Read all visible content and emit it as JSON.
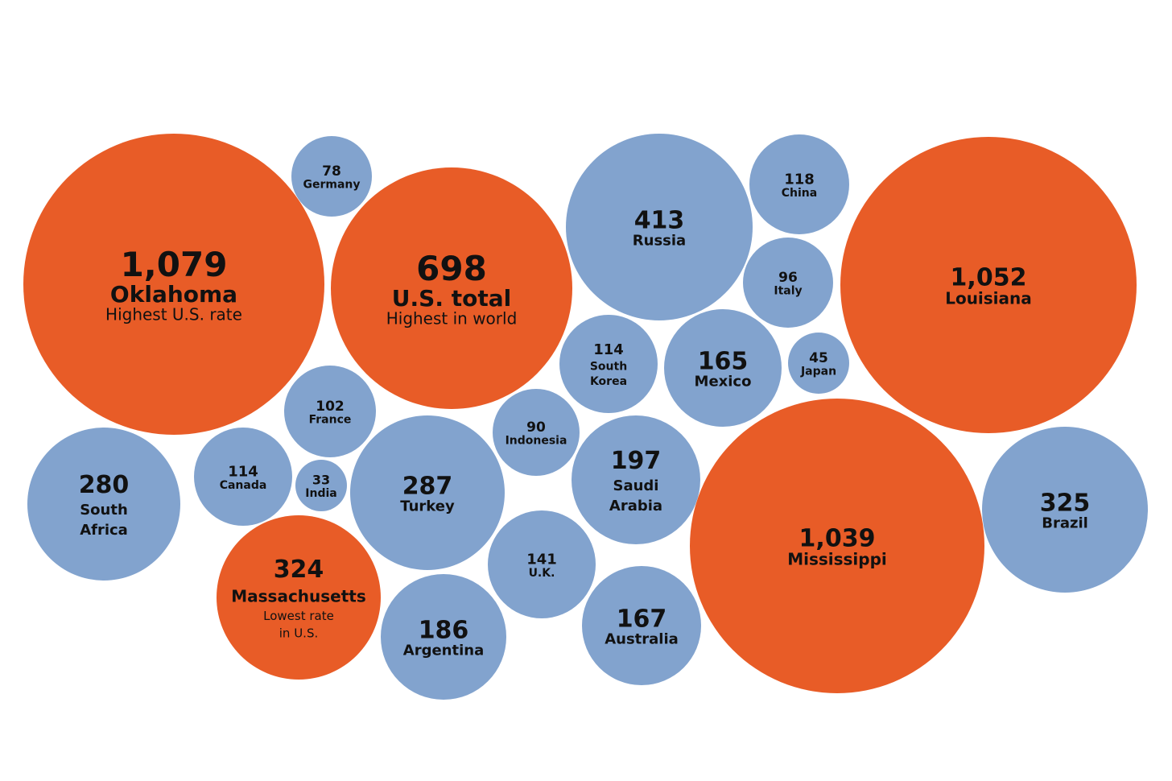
{
  "colors": {
    "us": "#E85C27",
    "world": "#82A3CE",
    "text": "#111111"
  },
  "chart_data": {
    "type": "bubble",
    "title": "",
    "bubbles": [
      {
        "value": "1,079",
        "amount": 1079,
        "label": [
          "Oklahoma"
        ],
        "note": [
          "Highest U.S. rate"
        ],
        "group": "us"
      },
      {
        "value": "78",
        "amount": 78,
        "label": [
          "Germany"
        ],
        "note": [],
        "group": "world"
      },
      {
        "value": "698",
        "amount": 698,
        "label": [
          "U.S. total"
        ],
        "note": [
          "Highest in world"
        ],
        "group": "us"
      },
      {
        "value": "413",
        "amount": 413,
        "label": [
          "Russia"
        ],
        "note": [],
        "group": "world"
      },
      {
        "value": "118",
        "amount": 118,
        "label": [
          "China"
        ],
        "note": [],
        "group": "world"
      },
      {
        "value": "96",
        "amount": 96,
        "label": [
          "Italy"
        ],
        "note": [],
        "group": "world"
      },
      {
        "value": "1,052",
        "amount": 1052,
        "label": [
          "Louisiana"
        ],
        "note": [],
        "group": "us"
      },
      {
        "value": "114",
        "amount": 114,
        "label": [
          "South",
          "Korea"
        ],
        "note": [],
        "group": "world"
      },
      {
        "value": "165",
        "amount": 165,
        "label": [
          "Mexico"
        ],
        "note": [],
        "group": "world"
      },
      {
        "value": "45",
        "amount": 45,
        "label": [
          "Japan"
        ],
        "note": [],
        "group": "world"
      },
      {
        "value": "102",
        "amount": 102,
        "label": [
          "France"
        ],
        "note": [],
        "group": "world"
      },
      {
        "value": "90",
        "amount": 90,
        "label": [
          "Indonesia"
        ],
        "note": [],
        "group": "world"
      },
      {
        "value": "280",
        "amount": 280,
        "label": [
          "South",
          "Africa"
        ],
        "note": [],
        "group": "world"
      },
      {
        "value": "114",
        "amount": 114,
        "label": [
          "Canada"
        ],
        "note": [],
        "group": "world"
      },
      {
        "value": "33",
        "amount": 33,
        "label": [
          "India"
        ],
        "note": [],
        "group": "world"
      },
      {
        "value": "287",
        "amount": 287,
        "label": [
          "Turkey"
        ],
        "note": [],
        "group": "world"
      },
      {
        "value": "197",
        "amount": 197,
        "label": [
          "Saudi",
          "Arabia"
        ],
        "note": [],
        "group": "world"
      },
      {
        "value": "1,039",
        "amount": 1039,
        "label": [
          "Mississippi"
        ],
        "note": [],
        "group": "us"
      },
      {
        "value": "325",
        "amount": 325,
        "label": [
          "Brazil"
        ],
        "note": [],
        "group": "world"
      },
      {
        "value": "324",
        "amount": 324,
        "label": [
          "Massachusetts"
        ],
        "note": [
          "Lowest rate",
          "in U.S."
        ],
        "group": "us"
      },
      {
        "value": "141",
        "amount": 141,
        "label": [
          "U.K."
        ],
        "note": [],
        "group": "world"
      },
      {
        "value": "186",
        "amount": 186,
        "label": [
          "Argentina"
        ],
        "note": [],
        "group": "world"
      },
      {
        "value": "167",
        "amount": 167,
        "label": [
          "Australia"
        ],
        "note": [],
        "group": "world"
      }
    ]
  }
}
